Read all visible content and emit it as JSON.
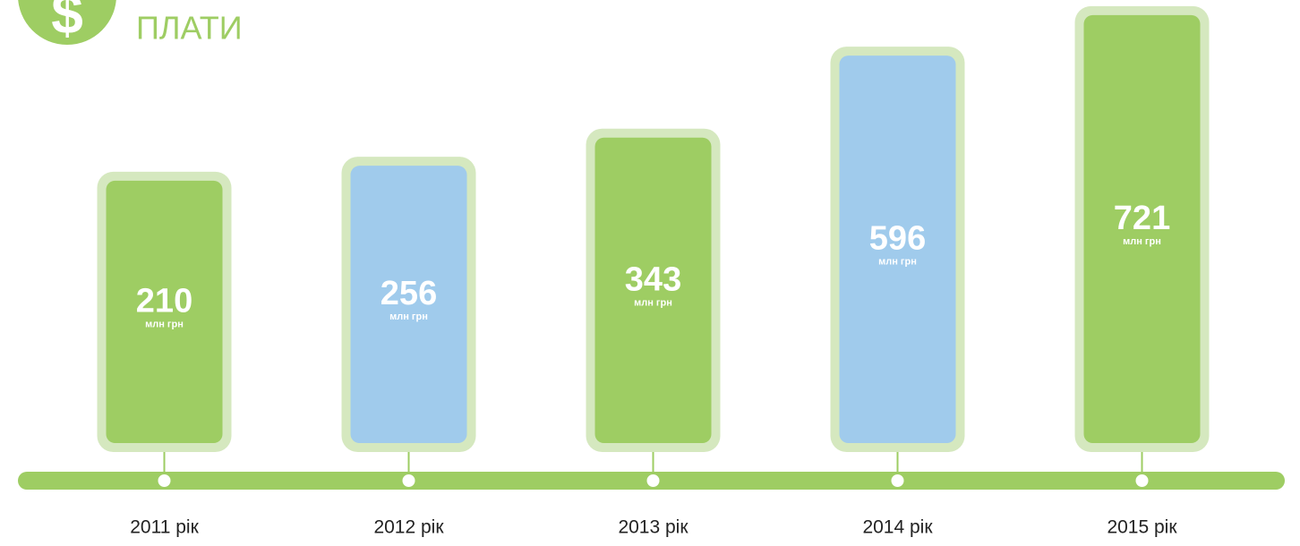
{
  "chart_data": {
    "type": "bar",
    "title": "ПЛАТИ",
    "unit": "млн грн",
    "categories": [
      "2011 рік",
      "2012 рік",
      "2013 рік",
      "2014 рік",
      "2015 рік"
    ],
    "values": [
      210,
      256,
      343,
      596,
      721
    ],
    "colors": [
      "#9ecd63",
      "#a0cbec",
      "#9ecd63",
      "#a0cbec",
      "#9ecd63"
    ],
    "ylim": [
      -600,
      740
    ]
  }
}
